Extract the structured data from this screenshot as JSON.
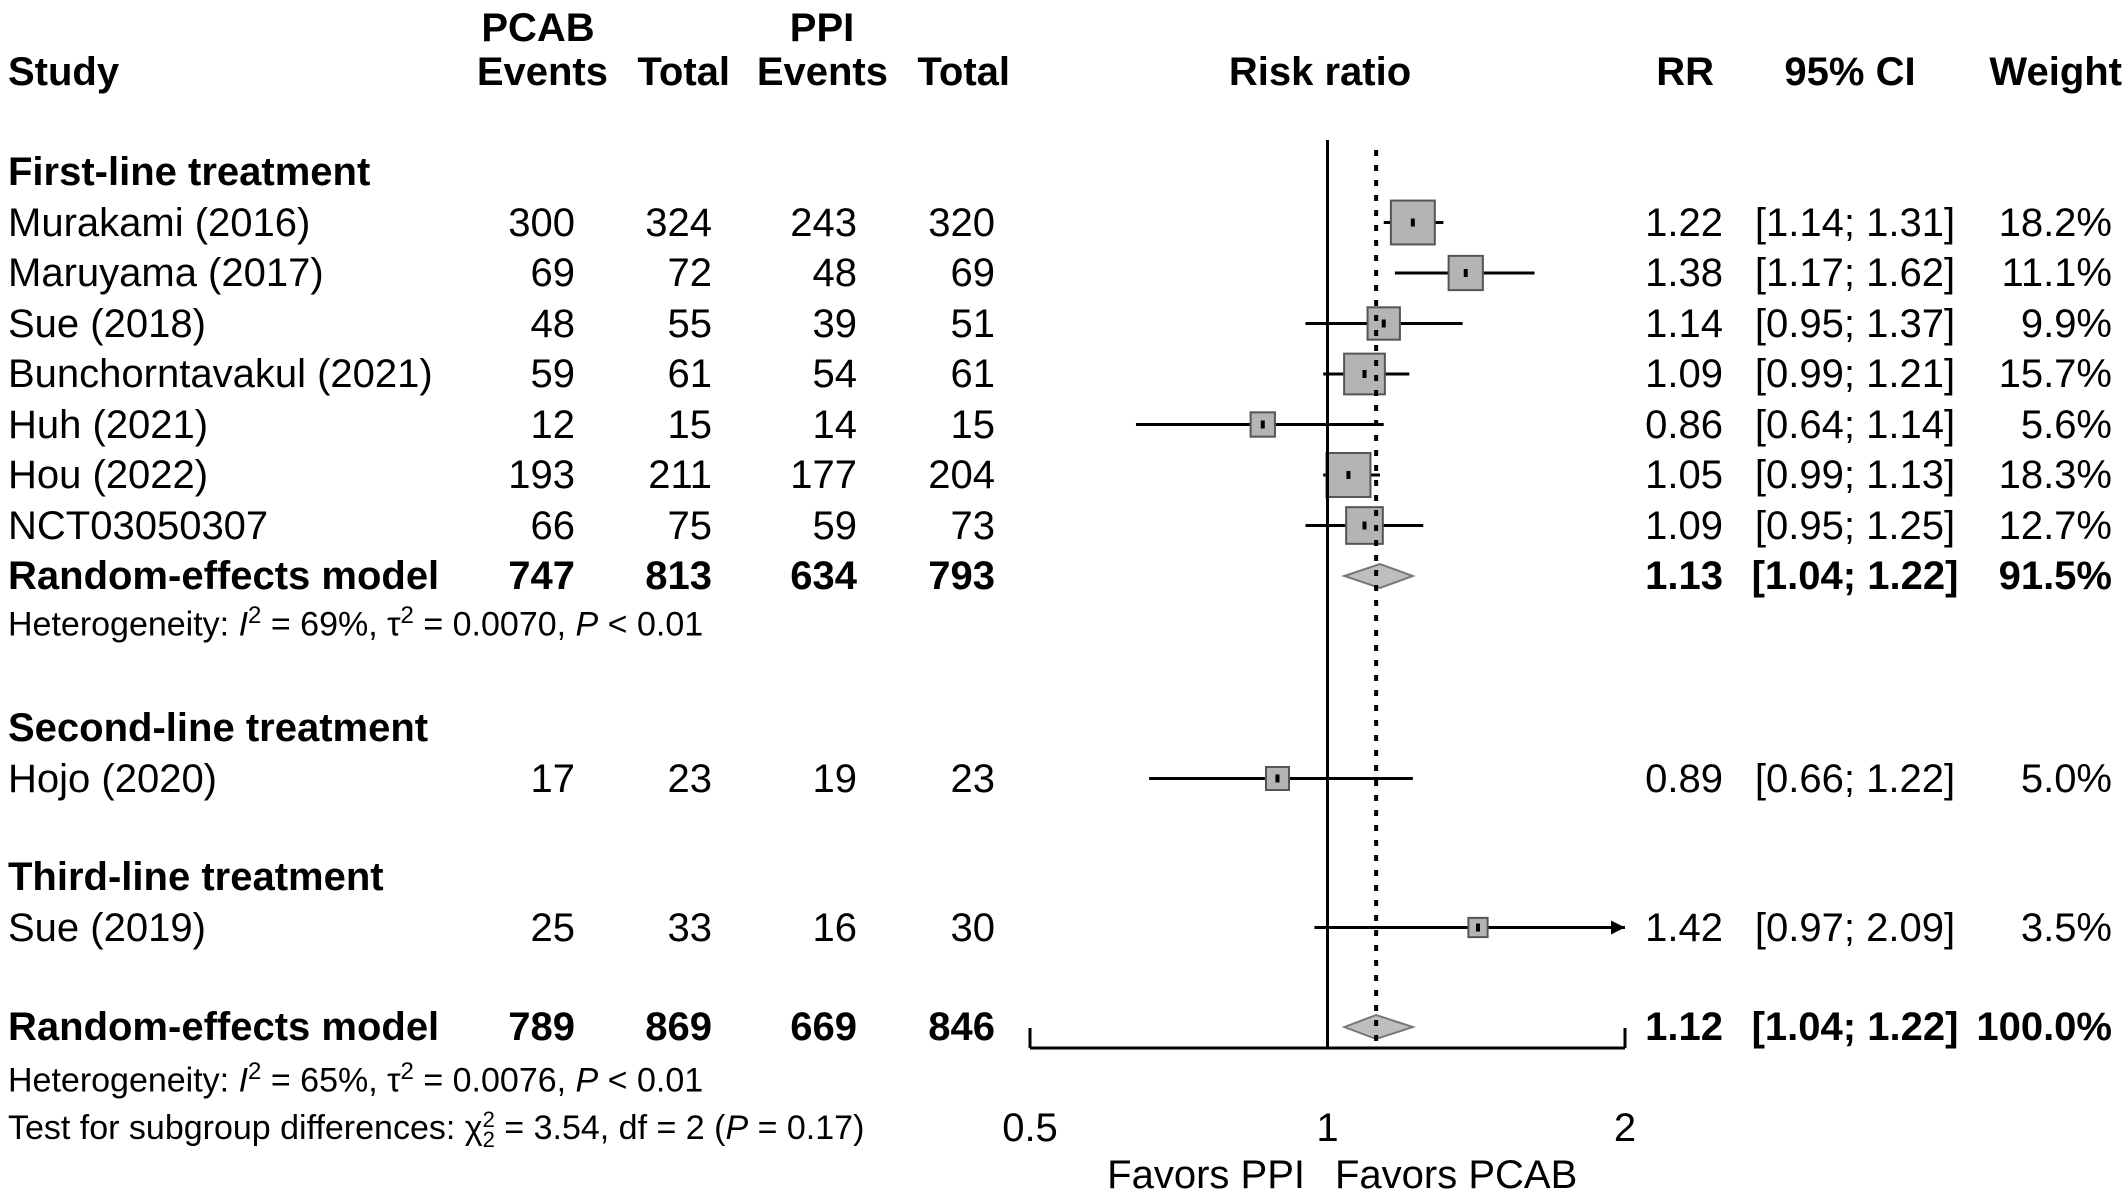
{
  "chart_data": {
    "type": "forest",
    "title": "",
    "xlabel": "Risk ratio",
    "x_scale": "log",
    "xlim": [
      0.5,
      2
    ],
    "x_ticks": [
      "0.5",
      "1",
      "2"
    ],
    "reference_line": 1,
    "overall_effect_line": 1.12,
    "favor_labels": {
      "left": "Favors PPI",
      "right": "Favors PCAB"
    },
    "headers": {
      "study": "Study",
      "pcab_group": "PCAB",
      "ppi_group": "PPI",
      "events": "Events",
      "total": "Total",
      "plot": "Risk ratio",
      "rr": "RR",
      "ci": "95% CI",
      "weight": "Weight"
    },
    "subgroups": [
      {
        "name": "First-line treatment",
        "studies": [
          {
            "study": "Murakami (2016)",
            "pcab_events": "300",
            "pcab_total": "324",
            "ppi_events": "243",
            "ppi_total": "320",
            "rr": 1.22,
            "ci_low": 1.14,
            "ci_high": 1.31,
            "rr_text": "1.22",
            "ci_text": "[1.14; 1.31]",
            "weight_text": "18.2%",
            "weight": 18.2
          },
          {
            "study": "Maruyama (2017)",
            "pcab_events": "69",
            "pcab_total": "72",
            "ppi_events": "48",
            "ppi_total": "69",
            "rr": 1.38,
            "ci_low": 1.17,
            "ci_high": 1.62,
            "rr_text": "1.38",
            "ci_text": "[1.17; 1.62]",
            "weight_text": "11.1%",
            "weight": 11.1
          },
          {
            "study": "Sue (2018)",
            "pcab_events": "48",
            "pcab_total": "55",
            "ppi_events": "39",
            "ppi_total": "51",
            "rr": 1.14,
            "ci_low": 0.95,
            "ci_high": 1.37,
            "rr_text": "1.14",
            "ci_text": "[0.95; 1.37]",
            "weight_text": "9.9%",
            "weight": 9.9
          },
          {
            "study": "Bunchorntavakul (2021)",
            "pcab_events": "59",
            "pcab_total": "61",
            "ppi_events": "54",
            "ppi_total": "61",
            "rr": 1.09,
            "ci_low": 0.99,
            "ci_high": 1.21,
            "rr_text": "1.09",
            "ci_text": "[0.99; 1.21]",
            "weight_text": "15.7%",
            "weight": 15.7
          },
          {
            "study": "Huh (2021)",
            "pcab_events": "12",
            "pcab_total": "15",
            "ppi_events": "14",
            "ppi_total": "15",
            "rr": 0.86,
            "ci_low": 0.64,
            "ci_high": 1.14,
            "rr_text": "0.86",
            "ci_text": "[0.64; 1.14]",
            "weight_text": "5.6%",
            "weight": 5.6
          },
          {
            "study": "Hou (2022)",
            "pcab_events": "193",
            "pcab_total": "211",
            "ppi_events": "177",
            "ppi_total": "204",
            "rr": 1.05,
            "ci_low": 0.99,
            "ci_high": 1.13,
            "rr_text": "1.05",
            "ci_text": "[0.99; 1.13]",
            "weight_text": "18.3%",
            "weight": 18.3
          },
          {
            "study": "NCT03050307",
            "pcab_events": "66",
            "pcab_total": "75",
            "ppi_events": "59",
            "ppi_total": "73",
            "rr": 1.09,
            "ci_low": 0.95,
            "ci_high": 1.25,
            "rr_text": "1.09",
            "ci_text": "[0.95; 1.25]",
            "weight_text": "12.7%",
            "weight": 12.7
          }
        ],
        "model": {
          "label": "Random-effects model",
          "pcab_events": "747",
          "pcab_total": "813",
          "ppi_events": "634",
          "ppi_total": "793",
          "rr": 1.13,
          "ci_low": 1.04,
          "ci_high": 1.22,
          "rr_text": "1.13",
          "ci_text": "[1.04; 1.22]",
          "weight_text": "91.5%"
        },
        "heterogeneity": {
          "prefix": "Heterogeneity: ",
          "i2": "69%",
          "tau2": "0.0070",
          "p": "0.01"
        }
      },
      {
        "name": "Second-line treatment",
        "studies": [
          {
            "study": "Hojo (2020)",
            "pcab_events": "17",
            "pcab_total": "23",
            "ppi_events": "19",
            "ppi_total": "23",
            "rr": 0.89,
            "ci_low": 0.66,
            "ci_high": 1.22,
            "rr_text": "0.89",
            "ci_text": "[0.66; 1.22]",
            "weight_text": "5.0%",
            "weight": 5.0
          }
        ]
      },
      {
        "name": "Third-line treatment",
        "studies": [
          {
            "study": "Sue (2019)",
            "pcab_events": "25",
            "pcab_total": "33",
            "ppi_events": "16",
            "ppi_total": "30",
            "rr": 1.42,
            "ci_low": 0.97,
            "ci_high": 2.09,
            "rr_text": "1.42",
            "ci_text": "[0.97; 2.09]",
            "weight_text": "3.5%",
            "weight": 3.5,
            "ci_truncated": true
          }
        ]
      }
    ],
    "overall": {
      "label": "Random-effects model",
      "pcab_events": "789",
      "pcab_total": "869",
      "ppi_events": "669",
      "ppi_total": "846",
      "rr": 1.12,
      "ci_low": 1.04,
      "ci_high": 1.22,
      "rr_text": "1.12",
      "ci_text": "[1.04; 1.22]",
      "weight_text": "100.0%",
      "heterogeneity": {
        "prefix": "Heterogeneity: ",
        "i2": "65%",
        "tau2": "0.0076",
        "p": "0.01"
      },
      "subgroup_test": {
        "prefix": "Test for subgroup differences: ",
        "chi2": "3.54",
        "df": "2",
        "p": "0.17"
      }
    },
    "colors": {
      "box_fill": "#b4b4b4",
      "diamond_fill": "#bebebe",
      "line": "#000000"
    }
  }
}
